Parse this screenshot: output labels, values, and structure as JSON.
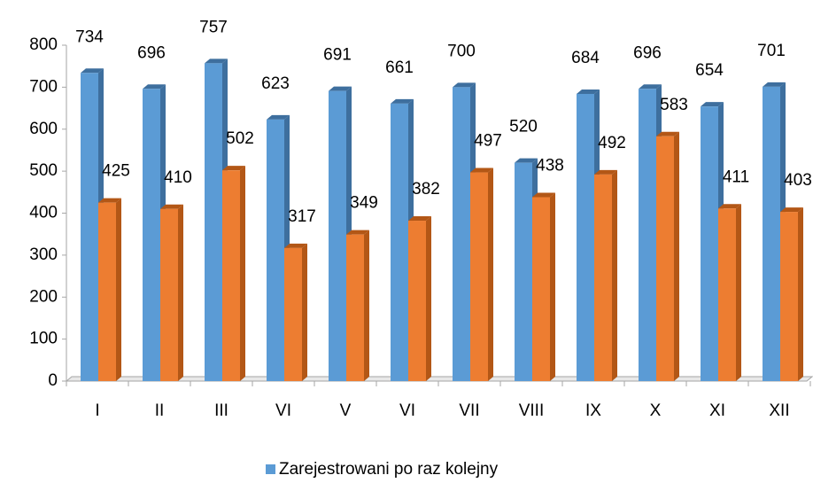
{
  "chart_data": {
    "type": "bar3d",
    "categories": [
      "I",
      "II",
      "III",
      "VI",
      "V",
      "VI",
      "VII",
      "VIII",
      "IX",
      "X",
      "XI",
      "XII"
    ],
    "series": [
      {
        "name": "Zarejestrowani po raz kolejny",
        "color": "#5b9bd5",
        "side": "#3e6f9e",
        "values": [
          734,
          696,
          757,
          623,
          691,
          661,
          700,
          520,
          684,
          696,
          654,
          701
        ]
      },
      {
        "color": "#ed7d31",
        "side": "#b35716",
        "values": [
          425,
          410,
          502,
          317,
          349,
          382,
          497,
          438,
          492,
          583,
          411,
          403
        ]
      }
    ],
    "ylim": [
      0,
      800
    ],
    "yticks": [
      0,
      100,
      200,
      300,
      400,
      500,
      600,
      700,
      800
    ]
  }
}
